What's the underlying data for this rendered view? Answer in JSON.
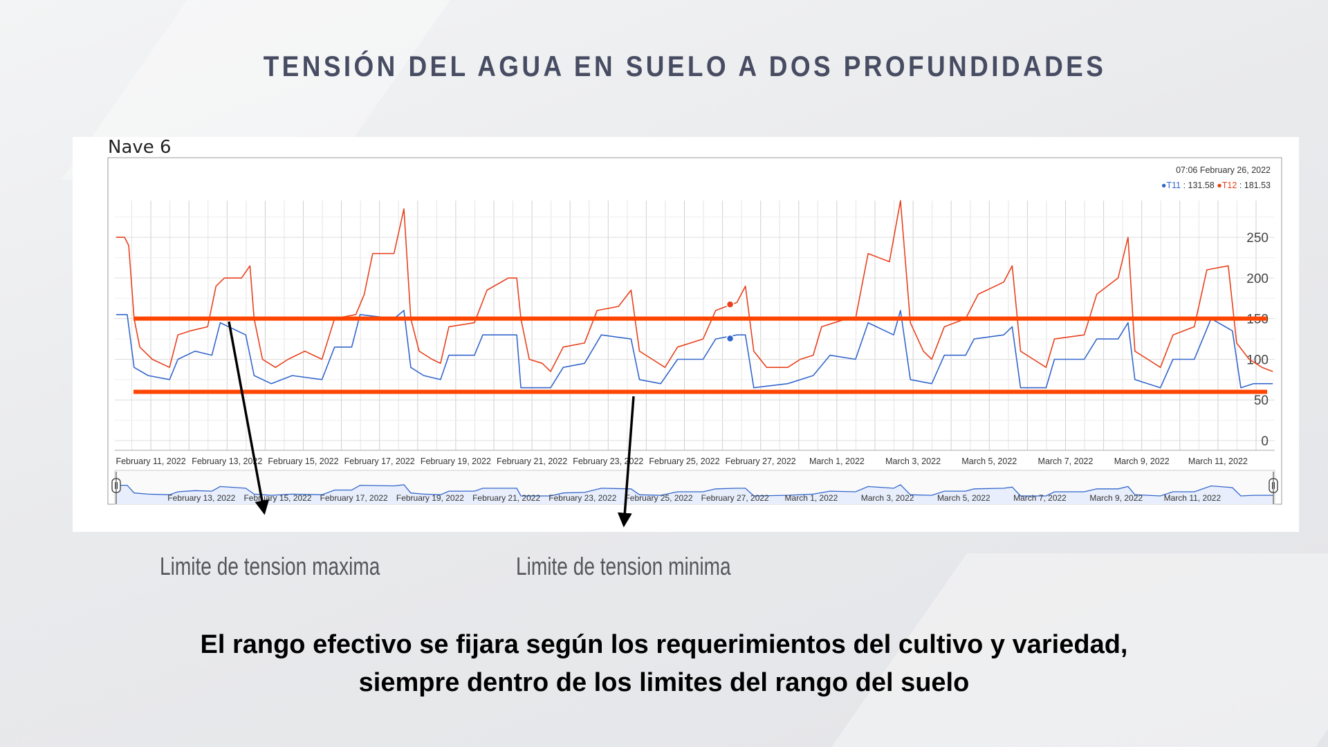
{
  "chart_data": {
    "type": "line",
    "title": "TENSIÓN DEL AGUA EN SUELO A DOS PROFUNDIDADES",
    "chart_name": "Nave 6",
    "x_unit": "days since February 10, 2022",
    "xlim": [
      0.09,
      30.44
    ],
    "ylim": [
      -12,
      295
    ],
    "yticks": [
      "0",
      "50",
      "100",
      "150",
      "200",
      "250"
    ],
    "ytick_values": [
      0,
      50,
      100,
      150,
      200,
      250
    ],
    "xtick_days": [
      1,
      3,
      5,
      7,
      9,
      11,
      13,
      15,
      17,
      19,
      21,
      23,
      25,
      27,
      29,
      31
    ],
    "xtick_labels": [
      "February 11, 2022",
      "February 13, 2022",
      "February 15, 2022",
      "February 17, 2022",
      "February 19, 2022",
      "February 21, 2022",
      "February 23, 2022",
      "February 25, 2022",
      "February 27, 2022",
      "March 1, 2022",
      "March 3, 2022",
      "March 5, 2022",
      "March 7, 2022",
      "March 9, 2022",
      "March 11, 2022"
    ],
    "navigator_labels": [
      "February 13, 2022",
      "February 15, 2022",
      "February 17, 2022",
      "February 19, 2022",
      "February 21, 2022",
      "February 23, 2022",
      "February 25, 2022",
      "February 27, 2022",
      "March 1, 2022",
      "March 3, 2022",
      "March 5, 2022",
      "March 7, 2022",
      "March 9, 2022",
      "March 11, 2022"
    ],
    "grid": true,
    "legend_position": "top-right",
    "hover": {
      "timestamp": "07:06 February 26, 2022",
      "day": 16.2,
      "items": [
        {
          "name": "T11",
          "value_text": "131.58",
          "value": 131.58
        },
        {
          "name": "T12",
          "value_text": "181.53",
          "value": 181.53
        }
      ]
    },
    "series": [
      {
        "name": "T12",
        "color": "#e8401c",
        "points": [
          [
            0.09,
            250
          ],
          [
            0.31,
            250
          ],
          [
            0.42,
            240
          ],
          [
            0.56,
            150
          ],
          [
            0.71,
            115
          ],
          [
            1.04,
            100
          ],
          [
            1.49,
            90
          ],
          [
            1.71,
            130
          ],
          [
            2.04,
            135
          ],
          [
            2.49,
            140
          ],
          [
            2.71,
            190
          ],
          [
            2.93,
            200
          ],
          [
            3.38,
            200
          ],
          [
            3.6,
            215
          ],
          [
            3.71,
            150
          ],
          [
            3.93,
            100
          ],
          [
            4.27,
            90
          ],
          [
            4.6,
            100
          ],
          [
            5.04,
            110
          ],
          [
            5.49,
            100
          ],
          [
            5.82,
            150
          ],
          [
            6.38,
            155
          ],
          [
            6.6,
            180
          ],
          [
            6.82,
            230
          ],
          [
            7.38,
            230
          ],
          [
            7.64,
            285
          ],
          [
            7.82,
            150
          ],
          [
            8.04,
            110
          ],
          [
            8.38,
            100
          ],
          [
            8.6,
            95
          ],
          [
            8.82,
            140
          ],
          [
            9.49,
            145
          ],
          [
            9.82,
            185
          ],
          [
            10.38,
            200
          ],
          [
            10.6,
            200
          ],
          [
            10.71,
            150
          ],
          [
            10.93,
            100
          ],
          [
            11.27,
            95
          ],
          [
            11.49,
            85
          ],
          [
            11.82,
            115
          ],
          [
            12.38,
            120
          ],
          [
            12.71,
            160
          ],
          [
            13.27,
            165
          ],
          [
            13.6,
            185
          ],
          [
            13.82,
            110
          ],
          [
            14.16,
            100
          ],
          [
            14.49,
            90
          ],
          [
            14.82,
            115
          ],
          [
            15.49,
            125
          ],
          [
            15.82,
            160
          ],
          [
            16.38,
            170
          ],
          [
            16.6,
            190
          ],
          [
            16.82,
            110
          ],
          [
            17.16,
            90
          ],
          [
            17.71,
            90
          ],
          [
            18.04,
            100
          ],
          [
            18.38,
            105
          ],
          [
            18.6,
            140
          ],
          [
            19.27,
            150
          ],
          [
            19.49,
            150
          ],
          [
            19.82,
            230
          ],
          [
            20.38,
            220
          ],
          [
            20.67,
            295
          ],
          [
            20.93,
            145
          ],
          [
            21.27,
            110
          ],
          [
            21.49,
            100
          ],
          [
            21.82,
            140
          ],
          [
            22.38,
            150
          ],
          [
            22.71,
            180
          ],
          [
            23.38,
            195
          ],
          [
            23.6,
            215
          ],
          [
            23.82,
            110
          ],
          [
            24.16,
            100
          ],
          [
            24.49,
            90
          ],
          [
            24.71,
            125
          ],
          [
            25.49,
            130
          ],
          [
            25.82,
            180
          ],
          [
            26.38,
            200
          ],
          [
            26.64,
            250
          ],
          [
            26.82,
            110
          ],
          [
            27.16,
            100
          ],
          [
            27.49,
            90
          ],
          [
            27.82,
            130
          ],
          [
            28.38,
            140
          ],
          [
            28.71,
            210
          ],
          [
            29.27,
            215
          ],
          [
            29.49,
            120
          ],
          [
            29.82,
            100
          ],
          [
            30.16,
            90
          ],
          [
            30.44,
            85
          ]
        ]
      },
      {
        "name": "T11",
        "color": "#3366cc",
        "points": [
          [
            0.09,
            155
          ],
          [
            0.38,
            155
          ],
          [
            0.56,
            90
          ],
          [
            0.93,
            80
          ],
          [
            1.49,
            75
          ],
          [
            1.71,
            100
          ],
          [
            2.16,
            110
          ],
          [
            2.6,
            105
          ],
          [
            2.82,
            145
          ],
          [
            3.49,
            130
          ],
          [
            3.71,
            80
          ],
          [
            4.16,
            70
          ],
          [
            4.71,
            80
          ],
          [
            5.49,
            75
          ],
          [
            5.82,
            115
          ],
          [
            6.27,
            115
          ],
          [
            6.49,
            155
          ],
          [
            7.38,
            150
          ],
          [
            7.64,
            160
          ],
          [
            7.82,
            90
          ],
          [
            8.16,
            80
          ],
          [
            8.6,
            75
          ],
          [
            8.82,
            105
          ],
          [
            9.49,
            105
          ],
          [
            9.71,
            130
          ],
          [
            10.6,
            130
          ],
          [
            10.71,
            65
          ],
          [
            11.49,
            65
          ],
          [
            11.82,
            90
          ],
          [
            12.38,
            95
          ],
          [
            12.82,
            130
          ],
          [
            13.6,
            125
          ],
          [
            13.82,
            75
          ],
          [
            14.38,
            70
          ],
          [
            14.82,
            100
          ],
          [
            15.49,
            100
          ],
          [
            15.82,
            125
          ],
          [
            16.38,
            130
          ],
          [
            16.6,
            130
          ],
          [
            16.82,
            65
          ],
          [
            17.71,
            70
          ],
          [
            18.38,
            80
          ],
          [
            18.82,
            105
          ],
          [
            19.49,
            100
          ],
          [
            19.82,
            145
          ],
          [
            20.49,
            130
          ],
          [
            20.67,
            160
          ],
          [
            20.93,
            75
          ],
          [
            21.49,
            70
          ],
          [
            21.82,
            105
          ],
          [
            22.38,
            105
          ],
          [
            22.6,
            125
          ],
          [
            23.38,
            130
          ],
          [
            23.6,
            140
          ],
          [
            23.82,
            65
          ],
          [
            24.49,
            65
          ],
          [
            24.71,
            100
          ],
          [
            25.49,
            100
          ],
          [
            25.82,
            125
          ],
          [
            26.38,
            125
          ],
          [
            26.64,
            145
          ],
          [
            26.82,
            75
          ],
          [
            27.49,
            65
          ],
          [
            27.82,
            100
          ],
          [
            28.38,
            100
          ],
          [
            28.82,
            150
          ],
          [
            29.38,
            135
          ],
          [
            29.6,
            65
          ],
          [
            29.93,
            70
          ],
          [
            30.44,
            70
          ]
        ]
      }
    ],
    "threshold_lines": [
      {
        "name": "Limite de tension maxima",
        "value": 150,
        "color": "#ff4500"
      },
      {
        "name": "Limite de tension minima",
        "value": 60,
        "color": "#ff4500"
      }
    ]
  },
  "annotations": {
    "max_label": "Limite de tension maxima",
    "min_label": "Limite de tension minima",
    "note_line1": "El rango efectivo se fijara según los requerimientos del cultivo y variedad,",
    "note_line2": "siempre dentro de los limites del rango del suelo"
  }
}
